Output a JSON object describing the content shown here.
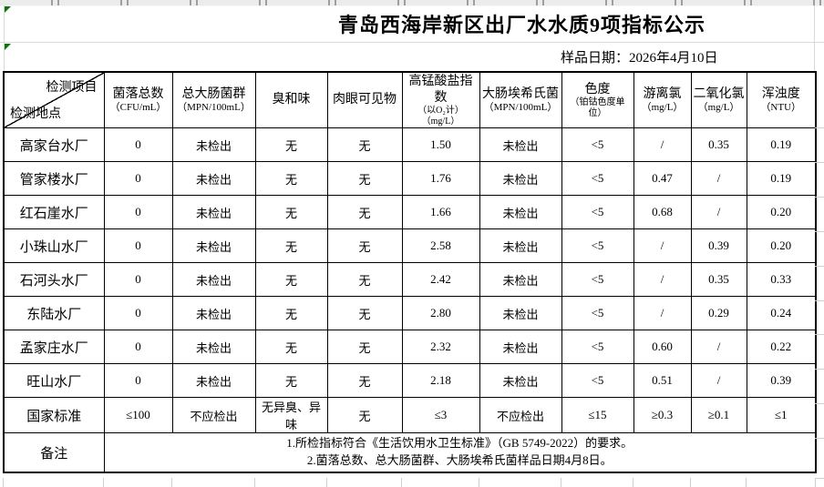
{
  "page": {
    "title": "青岛西海岸新区出厂水水质9项指标公示",
    "sample_date": "样品日期：2026年4月10日"
  },
  "chrome": {
    "column_header_strip": "spreadsheet-column-headers-partially-cut",
    "error_indicator_color": "#067806"
  },
  "table": {
    "corner": {
      "top_right": "检测项目",
      "bottom_left": "检测地点"
    },
    "columns": [
      {
        "name": "菌落总数",
        "unit": "（CFU/mL）",
        "unit2": ""
      },
      {
        "name": "总大肠菌群",
        "unit": "（MPN/100mL）",
        "unit2": ""
      },
      {
        "name": "臭和味",
        "unit": "",
        "unit2": ""
      },
      {
        "name": "肉眼可见物",
        "unit": "",
        "unit2": ""
      },
      {
        "name": "高锰酸盐指数",
        "unit": "（以O₂计）",
        "unit2": "（mg/L）"
      },
      {
        "name": "大肠埃希氏菌",
        "unit": "（MPN/100mL）",
        "unit2": ""
      },
      {
        "name": "色度",
        "unit": "（铂钴色度单位）",
        "unit2": ""
      },
      {
        "name": "游离氯",
        "unit": "（mg/L）",
        "unit2": ""
      },
      {
        "name": "二氧化氯",
        "unit": "（mg/L）",
        "unit2": ""
      },
      {
        "name": "浑浊度",
        "unit": "（NTU）",
        "unit2": ""
      }
    ],
    "rows": [
      {
        "site": "高家台水厂",
        "values": [
          "0",
          "未检出",
          "无",
          "无",
          "1.50",
          "未检出",
          "<5",
          "/",
          "0.35",
          "0.19"
        ]
      },
      {
        "site": "管家楼水厂",
        "values": [
          "0",
          "未检出",
          "无",
          "无",
          "1.76",
          "未检出",
          "<5",
          "0.47",
          "/",
          "0.19"
        ]
      },
      {
        "site": "红石崖水厂",
        "values": [
          "0",
          "未检出",
          "无",
          "无",
          "1.66",
          "未检出",
          "<5",
          "0.68",
          "/",
          "0.20"
        ]
      },
      {
        "site": "小珠山水厂",
        "values": [
          "0",
          "未检出",
          "无",
          "无",
          "2.58",
          "未检出",
          "<5",
          "/",
          "0.39",
          "0.20"
        ]
      },
      {
        "site": "石河头水厂",
        "values": [
          "0",
          "未检出",
          "无",
          "无",
          "2.42",
          "未检出",
          "<5",
          "/",
          "0.35",
          "0.33"
        ]
      },
      {
        "site": "东陆水厂",
        "values": [
          "0",
          "未检出",
          "无",
          "无",
          "2.80",
          "未检出",
          "<5",
          "/",
          "0.29",
          "0.24"
        ]
      },
      {
        "site": "孟家庄水厂",
        "values": [
          "0",
          "未检出",
          "无",
          "无",
          "2.32",
          "未检出",
          "<5",
          "0.60",
          "/",
          "0.22"
        ]
      },
      {
        "site": "旺山水厂",
        "values": [
          "0",
          "未检出",
          "无",
          "无",
          "2.18",
          "未检出",
          "<5",
          "0.51",
          "/",
          "0.39"
        ]
      }
    ],
    "standard": {
      "site": "国家标准",
      "values": [
        "≤100",
        "不应检出",
        "无异臭、异味",
        "无",
        "≤3",
        "不应检出",
        "≤15",
        "≥0.3",
        "≥0.1",
        "≤1"
      ]
    },
    "note": {
      "label": "备注",
      "lines": [
        "1.所检指标符合《生活饮用水卫生标准》（GB 5749-2022）的要求。",
        "2.菌落总数、总大肠菌群、大肠埃希氏菌样品日期4月8日。"
      ]
    }
  }
}
